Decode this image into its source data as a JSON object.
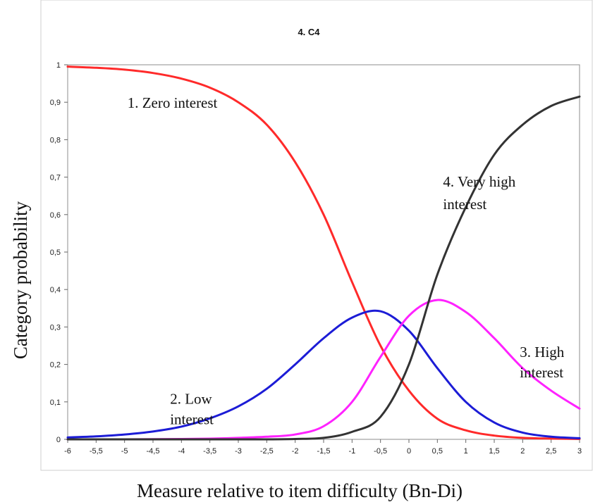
{
  "chart_data": {
    "type": "line",
    "title": "4. C4",
    "xlabel": "Measure relative to item difficulty (Bn-Di)",
    "ylabel": "Category  probability",
    "xlim": [
      -6,
      3
    ],
    "ylim": [
      0,
      1
    ],
    "x_ticks": [
      "-6",
      "-5,5",
      "-5",
      "-4,5",
      "-4",
      "-3,5",
      "-3",
      "-2,5",
      "-2",
      "-1,5",
      "-1",
      "-0,5",
      "0",
      "0,5",
      "1",
      "1,5",
      "2",
      "2,5",
      "3"
    ],
    "y_ticks": [
      "0",
      "0,1",
      "0,2",
      "0,3",
      "0,4",
      "0,5",
      "0,6",
      "0,7",
      "0,8",
      "0,9",
      "1"
    ],
    "grid": false,
    "x": [
      -6,
      -5.5,
      -5,
      -4.5,
      -4,
      -3.5,
      -3,
      -2.5,
      -2,
      -1.5,
      -1,
      -0.5,
      0,
      0.5,
      1,
      1.5,
      2,
      2.5,
      3
    ],
    "series": [
      {
        "name": "1. Zero interest",
        "color": "#ff2a2a",
        "values": [
          0.995,
          0.992,
          0.987,
          0.978,
          0.963,
          0.939,
          0.9,
          0.84,
          0.74,
          0.6,
          0.42,
          0.25,
          0.13,
          0.055,
          0.024,
          0.01,
          0.004,
          0.002,
          0.001
        ]
      },
      {
        "name": "2. Low interest",
        "color": "#1c1cd6",
        "values": [
          0.005,
          0.008,
          0.013,
          0.021,
          0.034,
          0.056,
          0.088,
          0.135,
          0.2,
          0.27,
          0.325,
          0.342,
          0.29,
          0.19,
          0.1,
          0.045,
          0.018,
          0.007,
          0.003
        ]
      },
      {
        "name": "3. High interest",
        "color": "#ff22ff",
        "values": [
          0.0,
          0.0,
          0.0,
          0.0005,
          0.001,
          0.002,
          0.004,
          0.007,
          0.013,
          0.035,
          0.1,
          0.22,
          0.33,
          0.372,
          0.34,
          0.27,
          0.19,
          0.13,
          0.082
        ]
      },
      {
        "name": "4. Very high interest",
        "color": "#333333",
        "values": [
          0.0,
          0.0,
          0.0,
          0.0,
          0.0,
          0.0,
          0.0,
          0.0,
          0.001,
          0.004,
          0.02,
          0.06,
          0.2,
          0.44,
          0.62,
          0.76,
          0.84,
          0.89,
          0.915
        ]
      }
    ],
    "annotations": [
      {
        "text": "1. Zero interest",
        "x": -4.95,
        "y": 0.885
      },
      {
        "text": "2. Low",
        "x": -4.2,
        "y": 0.095
      },
      {
        "text": "interest",
        "x": -4.2,
        "y": 0.04
      },
      {
        "text": "3. High",
        "x": 1.95,
        "y": 0.22
      },
      {
        "text": "interest",
        "x": 1.95,
        "y": 0.165
      },
      {
        "text": "4. Very high",
        "x": 0.6,
        "y": 0.675
      },
      {
        "text": "interest",
        "x": 0.6,
        "y": 0.615
      }
    ]
  }
}
